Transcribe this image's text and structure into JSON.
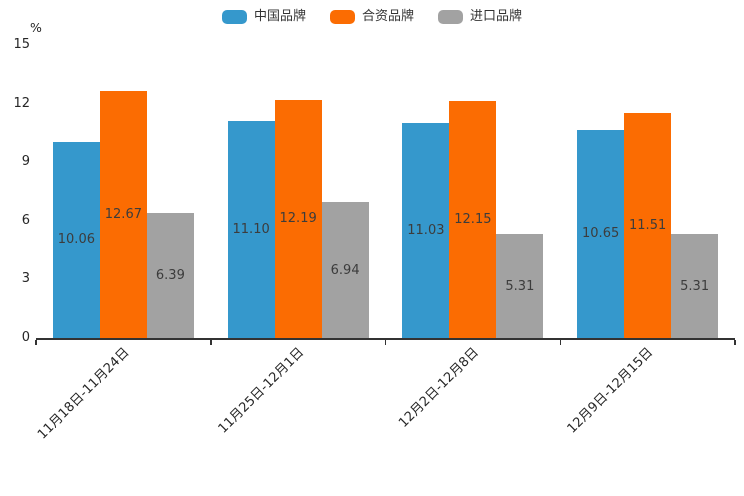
{
  "chart_data": {
    "type": "bar",
    "title": "",
    "ylabel": "%",
    "categories": [
      "11月18日-11月24日",
      "11月25日-12月1日",
      "12月2日-12月8日",
      "12月9日-12月15日"
    ],
    "series": [
      {
        "name": "中国品牌",
        "color": "#3598cc",
        "values": [
          10.06,
          11.1,
          11.03,
          10.65
        ]
      },
      {
        "name": "合资品牌",
        "color": "#fb6c02",
        "values": [
          12.67,
          12.19,
          12.15,
          11.51
        ]
      },
      {
        "name": "进口品牌",
        "color": "#a2a2a2",
        "values": [
          6.39,
          6.94,
          5.31,
          5.31
        ]
      }
    ],
    "ylim": [
      0,
      15
    ],
    "yticks": [
      0,
      3,
      6,
      9,
      12,
      15
    ],
    "grid": false,
    "legend_position": "top",
    "value_labels": true,
    "value_label_decimals": 2,
    "value_label_color": "#3c3c3c",
    "axis_color": "#333333"
  }
}
